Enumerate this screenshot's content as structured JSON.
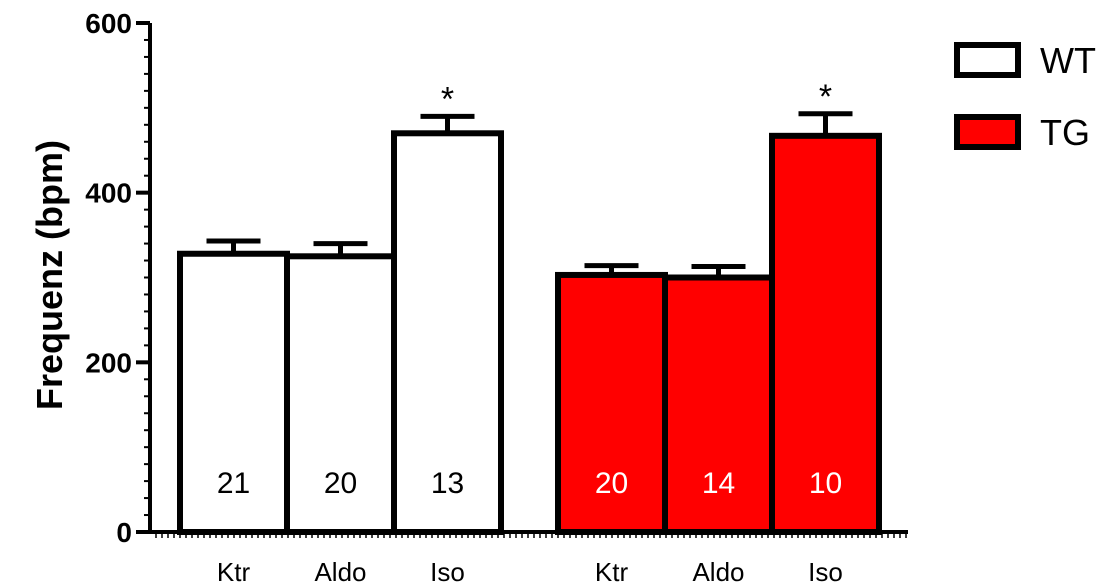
{
  "chart_data": {
    "type": "bar",
    "ylabel": "Frequenz (bpm)",
    "ylim": [
      0,
      600
    ],
    "yticks": [
      "0",
      "200",
      "400",
      "600"
    ],
    "legend_placement": "top-right",
    "series": [
      {
        "name": "WT",
        "fill": "#ffffff",
        "bars": [
          {
            "category": "Ktr",
            "value": 328,
            "error": 15,
            "n": "21",
            "sig": ""
          },
          {
            "category": "Aldo",
            "value": 325,
            "error": 15,
            "n": "20",
            "sig": ""
          },
          {
            "category": "Iso",
            "value": 470,
            "error": 20,
            "n": "13",
            "sig": "*"
          }
        ]
      },
      {
        "name": "TG",
        "fill": "#ff0000",
        "bars": [
          {
            "category": "Ktr",
            "value": 303,
            "error": 11,
            "n": "20",
            "sig": ""
          },
          {
            "category": "Aldo",
            "value": 300,
            "error": 13,
            "n": "14",
            "sig": ""
          },
          {
            "category": "Iso",
            "value": 467,
            "error": 26,
            "n": "10",
            "sig": "*"
          }
        ]
      }
    ]
  }
}
